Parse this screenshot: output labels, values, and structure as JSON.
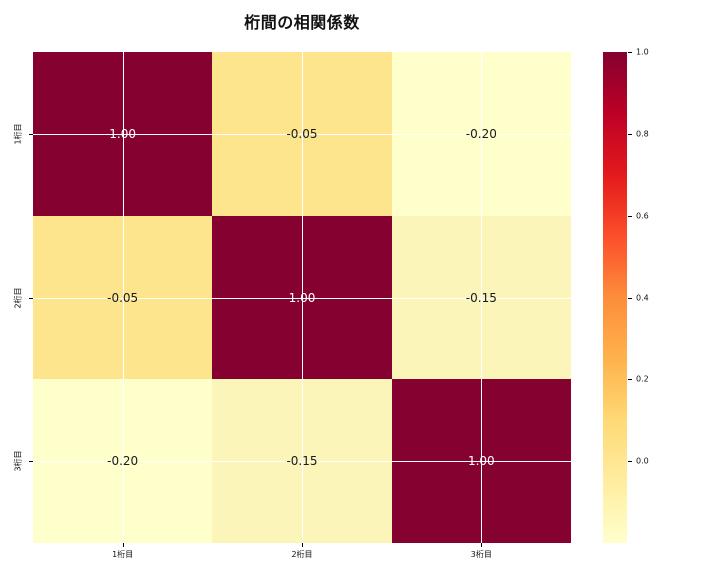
{
  "figure": {
    "background_color": "#ffffff",
    "title_color": "#111111"
  },
  "chart_data": {
    "type": "heatmap",
    "title": "桁間の相関係数",
    "x_categories": [
      "1桁目",
      "2桁目",
      "3桁目"
    ],
    "y_categories": [
      "1桁目",
      "2桁目",
      "3桁目"
    ],
    "values": [
      [
        1.0,
        -0.05,
        -0.2
      ],
      [
        -0.05,
        1.0,
        -0.15
      ],
      [
        -0.2,
        -0.15,
        1.0
      ]
    ],
    "cell_labels": [
      [
        "1.00",
        "-0.05",
        "-0.20"
      ],
      [
        "-0.05",
        "1.00",
        "-0.15"
      ],
      [
        "-0.20",
        "-0.15",
        "1.00"
      ]
    ],
    "cell_colors": [
      [
        "#85012f",
        "#fde58d",
        "#ffffcc"
      ],
      [
        "#fde58d",
        "#85012f",
        "#fcf5b9"
      ],
      [
        "#ffffcc",
        "#fcf5b9",
        "#85012f"
      ]
    ],
    "cell_text_colors": [
      [
        "#ffffff",
        "#1a1a1a",
        "#1a1a1a"
      ],
      [
        "#1a1a1a",
        "#ffffff",
        "#1a1a1a"
      ],
      [
        "#1a1a1a",
        "#1a1a1a",
        "#ffffff"
      ]
    ],
    "colormap": "YlOrRd",
    "vmin": -0.2,
    "vmax": 1.0,
    "grid": true,
    "gridline_color": "#ffffff",
    "legend_position": "right",
    "colorbar": {
      "ticks": [
        {
          "label": "1.0",
          "value": 1.0
        },
        {
          "label": "0.8",
          "value": 0.8
        },
        {
          "label": "0.6",
          "value": 0.6
        },
        {
          "label": "0.4",
          "value": 0.4
        },
        {
          "label": "0.2",
          "value": 0.2
        },
        {
          "label": "0.0",
          "value": 0.0
        }
      ],
      "gradient_stops": [
        {
          "color": "#ffffcc",
          "pos": 0
        },
        {
          "color": "#ffeda0",
          "pos": 12.5
        },
        {
          "color": "#fed976",
          "pos": 25
        },
        {
          "color": "#feb24c",
          "pos": 37.5
        },
        {
          "color": "#fd8d3c",
          "pos": 50
        },
        {
          "color": "#fc4e2a",
          "pos": 62.5
        },
        {
          "color": "#e31a1c",
          "pos": 75
        },
        {
          "color": "#bd0026",
          "pos": 87.5
        },
        {
          "color": "#85012f",
          "pos": 100
        }
      ]
    }
  }
}
